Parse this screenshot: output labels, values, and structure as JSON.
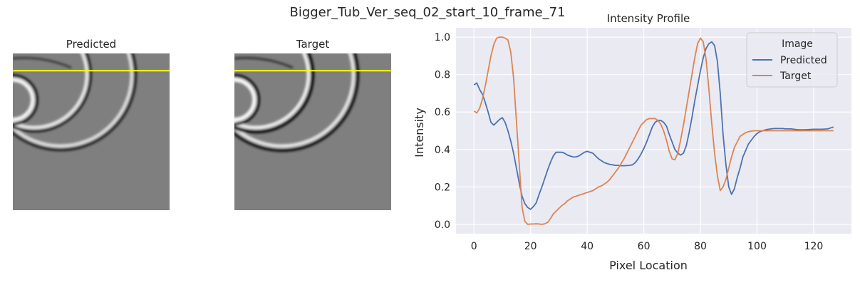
{
  "figure": {
    "title": "Bigger_Tub_Ver_seq_02_start_10_frame_71"
  },
  "panels": {
    "predicted_title": "Predicted",
    "target_title": "Target",
    "line_color": "#ffff00",
    "line_row_fraction": 0.11
  },
  "chart_data": {
    "type": "line",
    "title": "Intensity Profile",
    "xlabel": "Pixel Location",
    "ylabel": "Intensity",
    "xlim": [
      -6.35,
      133.35
    ],
    "ylim": [
      -0.05,
      1.05
    ],
    "xticks": [
      0,
      20,
      40,
      60,
      80,
      100,
      120
    ],
    "yticks": [
      0.0,
      0.2,
      0.4,
      0.6,
      0.8,
      1.0
    ],
    "grid": true,
    "background": "#eaeaf2",
    "legend": {
      "title": "Image",
      "placement": "top-right"
    },
    "series": [
      {
        "name": "Predicted",
        "color": "#4c72b0",
        "points": [
          [
            0,
            0.745
          ],
          [
            1,
            0.755
          ],
          [
            2,
            0.72
          ],
          [
            3,
            0.695
          ],
          [
            4,
            0.65
          ],
          [
            5,
            0.6
          ],
          [
            6,
            0.545
          ],
          [
            7,
            0.53
          ],
          [
            8,
            0.545
          ],
          [
            9,
            0.56
          ],
          [
            10,
            0.57
          ],
          [
            11,
            0.545
          ],
          [
            12,
            0.5
          ],
          [
            13,
            0.445
          ],
          [
            14,
            0.38
          ],
          [
            15,
            0.3
          ],
          [
            16,
            0.22
          ],
          [
            17,
            0.15
          ],
          [
            18,
            0.11
          ],
          [
            19,
            0.09
          ],
          [
            20,
            0.08
          ],
          [
            21,
            0.095
          ],
          [
            22,
            0.115
          ],
          [
            23,
            0.16
          ],
          [
            24,
            0.2
          ],
          [
            25,
            0.245
          ],
          [
            26,
            0.29
          ],
          [
            27,
            0.33
          ],
          [
            28,
            0.365
          ],
          [
            29,
            0.385
          ],
          [
            30,
            0.385
          ],
          [
            31,
            0.385
          ],
          [
            32,
            0.38
          ],
          [
            33,
            0.37
          ],
          [
            34,
            0.365
          ],
          [
            35,
            0.36
          ],
          [
            36,
            0.36
          ],
          [
            37,
            0.365
          ],
          [
            38,
            0.375
          ],
          [
            39,
            0.385
          ],
          [
            40,
            0.39
          ],
          [
            41,
            0.385
          ],
          [
            42,
            0.38
          ],
          [
            43,
            0.365
          ],
          [
            44,
            0.35
          ],
          [
            45,
            0.34
          ],
          [
            46,
            0.33
          ],
          [
            47,
            0.325
          ],
          [
            48,
            0.32
          ],
          [
            49,
            0.318
          ],
          [
            50,
            0.315
          ],
          [
            51,
            0.315
          ],
          [
            52,
            0.313
          ],
          [
            53,
            0.313
          ],
          [
            54,
            0.314
          ],
          [
            55,
            0.315
          ],
          [
            56,
            0.318
          ],
          [
            57,
            0.33
          ],
          [
            58,
            0.35
          ],
          [
            59,
            0.375
          ],
          [
            60,
            0.405
          ],
          [
            61,
            0.44
          ],
          [
            62,
            0.48
          ],
          [
            63,
            0.52
          ],
          [
            64,
            0.545
          ],
          [
            65,
            0.555
          ],
          [
            66,
            0.555
          ],
          [
            67,
            0.545
          ],
          [
            68,
            0.525
          ],
          [
            69,
            0.48
          ],
          [
            70,
            0.44
          ],
          [
            71,
            0.4
          ],
          [
            72,
            0.38
          ],
          [
            73,
            0.37
          ],
          [
            74,
            0.38
          ],
          [
            75,
            0.42
          ],
          [
            76,
            0.49
          ],
          [
            77,
            0.57
          ],
          [
            78,
            0.66
          ],
          [
            79,
            0.74
          ],
          [
            80,
            0.82
          ],
          [
            81,
            0.89
          ],
          [
            82,
            0.94
          ],
          [
            83,
            0.965
          ],
          [
            84,
            0.975
          ],
          [
            85,
            0.955
          ],
          [
            86,
            0.87
          ],
          [
            87,
            0.7
          ],
          [
            88,
            0.48
          ],
          [
            89,
            0.32
          ],
          [
            90,
            0.2
          ],
          [
            91,
            0.16
          ],
          [
            92,
            0.19
          ],
          [
            93,
            0.25
          ],
          [
            94,
            0.3
          ],
          [
            95,
            0.36
          ],
          [
            96,
            0.395
          ],
          [
            97,
            0.43
          ],
          [
            98,
            0.45
          ],
          [
            99,
            0.47
          ],
          [
            100,
            0.485
          ],
          [
            101,
            0.495
          ],
          [
            102,
            0.5
          ],
          [
            103,
            0.505
          ],
          [
            104,
            0.508
          ],
          [
            105,
            0.51
          ],
          [
            106,
            0.512
          ],
          [
            107,
            0.512
          ],
          [
            108,
            0.512
          ],
          [
            109,
            0.512
          ],
          [
            110,
            0.51
          ],
          [
            111,
            0.51
          ],
          [
            112,
            0.51
          ],
          [
            113,
            0.508
          ],
          [
            114,
            0.506
          ],
          [
            115,
            0.505
          ],
          [
            116,
            0.505
          ],
          [
            117,
            0.505
          ],
          [
            118,
            0.506
          ],
          [
            119,
            0.507
          ],
          [
            120,
            0.508
          ],
          [
            121,
            0.508
          ],
          [
            122,
            0.508
          ],
          [
            123,
            0.508
          ],
          [
            124,
            0.509
          ],
          [
            125,
            0.51
          ],
          [
            126,
            0.515
          ],
          [
            127,
            0.52
          ]
        ]
      },
      {
        "name": "Target",
        "color": "#dd8452",
        "points": [
          [
            0,
            0.605
          ],
          [
            1,
            0.595
          ],
          [
            2,
            0.62
          ],
          [
            3,
            0.67
          ],
          [
            4,
            0.74
          ],
          [
            5,
            0.82
          ],
          [
            6,
            0.9
          ],
          [
            7,
            0.96
          ],
          [
            8,
            0.995
          ],
          [
            9,
            1.0
          ],
          [
            10,
            1.0
          ],
          [
            11,
            0.995
          ],
          [
            12,
            0.985
          ],
          [
            13,
            0.92
          ],
          [
            14,
            0.78
          ],
          [
            15,
            0.55
          ],
          [
            16,
            0.32
          ],
          [
            17,
            0.09
          ],
          [
            18,
            0.015
          ],
          [
            19,
            0.0
          ],
          [
            20,
            0.002
          ],
          [
            21,
            0.002
          ],
          [
            22,
            0.003
          ],
          [
            23,
            0.002
          ],
          [
            24,
            0.0
          ],
          [
            25,
            0.003
          ],
          [
            26,
            0.01
          ],
          [
            27,
            0.03
          ],
          [
            28,
            0.055
          ],
          [
            29,
            0.07
          ],
          [
            30,
            0.085
          ],
          [
            31,
            0.1
          ],
          [
            32,
            0.11
          ],
          [
            33,
            0.125
          ],
          [
            34,
            0.135
          ],
          [
            35,
            0.145
          ],
          [
            36,
            0.15
          ],
          [
            37,
            0.155
          ],
          [
            38,
            0.16
          ],
          [
            39,
            0.165
          ],
          [
            40,
            0.17
          ],
          [
            41,
            0.175
          ],
          [
            42,
            0.18
          ],
          [
            43,
            0.19
          ],
          [
            44,
            0.2
          ],
          [
            45,
            0.205
          ],
          [
            46,
            0.215
          ],
          [
            47,
            0.225
          ],
          [
            48,
            0.24
          ],
          [
            49,
            0.26
          ],
          [
            50,
            0.28
          ],
          [
            51,
            0.3
          ],
          [
            52,
            0.325
          ],
          [
            53,
            0.35
          ],
          [
            54,
            0.38
          ],
          [
            55,
            0.41
          ],
          [
            56,
            0.44
          ],
          [
            57,
            0.47
          ],
          [
            58,
            0.5
          ],
          [
            59,
            0.53
          ],
          [
            60,
            0.545
          ],
          [
            61,
            0.56
          ],
          [
            62,
            0.565
          ],
          [
            63,
            0.565
          ],
          [
            64,
            0.565
          ],
          [
            65,
            0.555
          ],
          [
            66,
            0.535
          ],
          [
            67,
            0.5
          ],
          [
            68,
            0.45
          ],
          [
            69,
            0.39
          ],
          [
            70,
            0.35
          ],
          [
            71,
            0.345
          ],
          [
            72,
            0.38
          ],
          [
            73,
            0.45
          ],
          [
            74,
            0.53
          ],
          [
            75,
            0.62
          ],
          [
            76,
            0.71
          ],
          [
            77,
            0.8
          ],
          [
            78,
            0.89
          ],
          [
            79,
            0.965
          ],
          [
            80,
            0.995
          ],
          [
            81,
            0.975
          ],
          [
            82,
            0.88
          ],
          [
            83,
            0.72
          ],
          [
            84,
            0.54
          ],
          [
            85,
            0.38
          ],
          [
            86,
            0.26
          ],
          [
            87,
            0.18
          ],
          [
            88,
            0.2
          ],
          [
            89,
            0.24
          ],
          [
            90,
            0.3
          ],
          [
            91,
            0.36
          ],
          [
            92,
            0.41
          ],
          [
            93,
            0.44
          ],
          [
            94,
            0.47
          ],
          [
            95,
            0.48
          ],
          [
            96,
            0.49
          ],
          [
            97,
            0.495
          ],
          [
            98,
            0.498
          ],
          [
            99,
            0.5
          ],
          [
            100,
            0.5
          ],
          [
            101,
            0.5
          ],
          [
            102,
            0.5
          ],
          [
            103,
            0.5
          ],
          [
            104,
            0.5
          ],
          [
            105,
            0.5
          ],
          [
            106,
            0.5
          ],
          [
            107,
            0.5
          ],
          [
            108,
            0.5
          ],
          [
            109,
            0.5
          ],
          [
            110,
            0.5
          ],
          [
            111,
            0.5
          ],
          [
            112,
            0.5
          ],
          [
            113,
            0.5
          ],
          [
            114,
            0.5
          ],
          [
            115,
            0.5
          ],
          [
            116,
            0.5
          ],
          [
            117,
            0.5
          ],
          [
            118,
            0.5
          ],
          [
            119,
            0.5
          ],
          [
            120,
            0.5
          ],
          [
            121,
            0.5
          ],
          [
            122,
            0.5
          ],
          [
            123,
            0.5
          ],
          [
            124,
            0.5
          ],
          [
            125,
            0.5
          ],
          [
            126,
            0.5
          ],
          [
            127,
            0.5
          ]
        ]
      }
    ]
  }
}
